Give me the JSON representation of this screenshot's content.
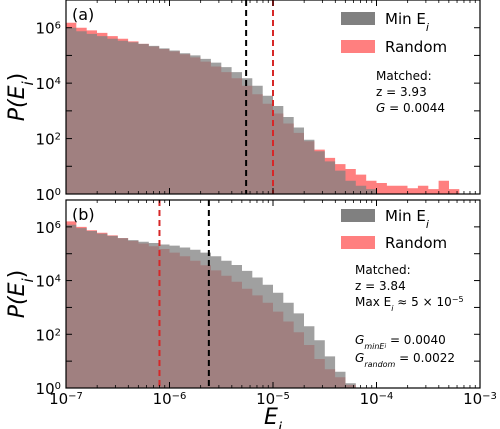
{
  "chart_data": [
    {
      "type": "histogram",
      "panel_label": "(a)",
      "xscale": "log",
      "yscale": "log",
      "xlim": [
        1e-07,
        0.001
      ],
      "ylim": [
        1,
        10000000.0
      ],
      "ylabel_base": "P(E",
      "ylabel_sub": "i",
      "ylabel_close": ")",
      "yticks": [
        {
          "value": 1,
          "base": "10",
          "exp": "0"
        },
        {
          "value": 100,
          "base": "10",
          "exp": "2"
        },
        {
          "value": 10000,
          "base": "10",
          "exp": "4"
        },
        {
          "value": 1000000,
          "base": "10",
          "exp": "6"
        }
      ],
      "legend": [
        {
          "label_main": "Min E",
          "label_sub": "i",
          "color": "#808080"
        },
        {
          "label_main": "Random",
          "label_sub": "",
          "color": "#ff7f7f"
        }
      ],
      "vlines": [
        {
          "x": 5.5e-06,
          "color": "#000000",
          "style": "dashed"
        },
        {
          "x": 1e-05,
          "color": "#d62728",
          "style": "dashed"
        }
      ],
      "annotations": {
        "line1": "Matched:",
        "line2": "z = 3.93",
        "line3_var": "G",
        "line3_val": " = 0.0044"
      },
      "series": [
        {
          "name": "Random",
          "color": "#ff7f7f",
          "bin_edges_log10": [
            -7.0,
            -6.9,
            -6.8,
            -6.7,
            -6.6,
            -6.5,
            -6.4,
            -6.3,
            -6.2,
            -6.1,
            -6.0,
            -5.9,
            -5.8,
            -5.7,
            -5.6,
            -5.5,
            -5.4,
            -5.3,
            -5.2,
            -5.1,
            -5.0,
            -4.9,
            -4.8,
            -4.7,
            -4.6,
            -4.5,
            -4.4,
            -4.3,
            -4.2,
            -4.1,
            -4.0,
            -3.9,
            -3.8,
            -3.7,
            -3.6,
            -3.5,
            -3.4,
            -3.3,
            -3.2
          ],
          "counts": [
            1500000,
            1000000,
            800000,
            650000,
            500000,
            400000,
            320000,
            260000,
            210000,
            170000,
            140000,
            110000,
            85000,
            60000,
            40000,
            25000,
            15000,
            8000,
            4000,
            1800,
            800,
            350,
            160,
            80,
            40,
            20,
            12,
            8,
            5,
            3,
            2.5,
            2,
            2,
            1.6,
            2,
            1.5,
            3,
            1.5
          ]
        },
        {
          "name": "Min Ei",
          "color": "#808080",
          "bin_edges_log10": [
            -7.0,
            -6.9,
            -6.8,
            -6.7,
            -6.6,
            -6.5,
            -6.4,
            -6.3,
            -6.2,
            -6.1,
            -6.0,
            -5.9,
            -5.8,
            -5.7,
            -5.6,
            -5.5,
            -5.4,
            -5.3,
            -5.2,
            -5.1,
            -5.0,
            -4.9,
            -4.8,
            -4.7,
            -4.6,
            -4.5,
            -4.4,
            -4.3,
            -4.2,
            -4.1,
            -4.0
          ],
          "counts": [
            1000000,
            750000,
            600000,
            500000,
            400000,
            340000,
            300000,
            260000,
            220000,
            180000,
            150000,
            120000,
            100000,
            75000,
            55000,
            38000,
            25000,
            15000,
            8000,
            3500,
            1500,
            600,
            250,
            90,
            35,
            15,
            7,
            3,
            2,
            1.5
          ]
        }
      ]
    },
    {
      "type": "histogram",
      "panel_label": "(b)",
      "xscale": "log",
      "yscale": "log",
      "xlim": [
        1e-07,
        0.001
      ],
      "ylim": [
        1,
        10000000.0
      ],
      "xlabel_base": "E",
      "xlabel_sub": "i",
      "ylabel_base": "P(E",
      "ylabel_sub": "i",
      "ylabel_close": ")",
      "xticks": [
        {
          "value": 1e-07,
          "base": "10",
          "exp": "−7"
        },
        {
          "value": 1e-06,
          "base": "10",
          "exp": "−6"
        },
        {
          "value": 1e-05,
          "base": "10",
          "exp": "−5"
        },
        {
          "value": 0.0001,
          "base": "10",
          "exp": "−4"
        },
        {
          "value": 0.001,
          "base": "10",
          "exp": "−3"
        }
      ],
      "yticks": [
        {
          "value": 1,
          "base": "10",
          "exp": "0"
        },
        {
          "value": 100,
          "base": "10",
          "exp": "2"
        },
        {
          "value": 10000,
          "base": "10",
          "exp": "4"
        },
        {
          "value": 1000000,
          "base": "10",
          "exp": "6"
        }
      ],
      "legend": [
        {
          "label_main": "Min E",
          "label_sub": "i",
          "color": "#808080"
        },
        {
          "label_main": "Random",
          "label_sub": "",
          "color": "#ff7f7f"
        }
      ],
      "vlines": [
        {
          "x": 8e-07,
          "color": "#d62728",
          "style": "dashed"
        },
        {
          "x": 2.4e-06,
          "color": "#000000",
          "style": "dashed"
        }
      ],
      "annotations": {
        "line1": "Matched:",
        "line2": "z = 3.84",
        "line3_pre": "Max E",
        "line3_sub": "i",
        "line3_post": " ≈ 5 × 10",
        "line3_exp": "−5",
        "g1_var": "G",
        "g1_sub": "minE",
        "g1_subsub": "i",
        "g1_val": " = 0.0040",
        "g2_var": "G",
        "g2_sub": "random",
        "g2_val": " = 0.0022"
      },
      "series": [
        {
          "name": "Random",
          "color": "#ff7f7f",
          "bin_edges_log10": [
            -7.0,
            -6.9,
            -6.8,
            -6.7,
            -6.6,
            -6.5,
            -6.4,
            -6.3,
            -6.2,
            -6.1,
            -6.0,
            -5.9,
            -5.8,
            -5.7,
            -5.6,
            -5.5,
            -5.4,
            -5.3,
            -5.2,
            -5.1,
            -5.0,
            -4.9,
            -4.8,
            -4.7,
            -4.6,
            -4.5,
            -4.4,
            -4.3,
            -4.2
          ],
          "counts": [
            1600000,
            1000000,
            750000,
            600000,
            480000,
            380000,
            300000,
            240000,
            190000,
            150000,
            110000,
            80000,
            55000,
            37000,
            24000,
            15000,
            9000,
            5000,
            2800,
            1500,
            700,
            300,
            120,
            40,
            12,
            5,
            2.5,
            1.3
          ]
        },
        {
          "name": "Min Ei",
          "color": "#808080",
          "bin_edges_log10": [
            -7.0,
            -6.9,
            -6.8,
            -6.7,
            -6.6,
            -6.5,
            -6.4,
            -6.3,
            -6.2,
            -6.1,
            -6.0,
            -5.9,
            -5.8,
            -5.7,
            -5.6,
            -5.5,
            -5.4,
            -5.3,
            -5.2,
            -5.1,
            -5.0,
            -4.9,
            -4.8,
            -4.7,
            -4.6,
            -4.5,
            -4.4,
            -4.3,
            -4.2
          ],
          "counts": [
            1200000,
            900000,
            700000,
            560000,
            460000,
            380000,
            320000,
            280000,
            250000,
            220000,
            200000,
            170000,
            140000,
            110000,
            80000,
            55000,
            38000,
            23000,
            13000,
            7000,
            3500,
            1500,
            600,
            200,
            60,
            15,
            4,
            1.5
          ]
        }
      ]
    }
  ]
}
